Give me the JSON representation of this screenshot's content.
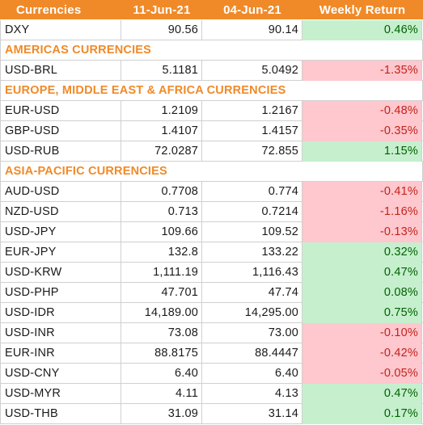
{
  "header": {
    "col1": "Currencies",
    "col2": "11-Jun-21",
    "col3": "04-Jun-21",
    "col4": "Weekly Return"
  },
  "rows": [
    {
      "type": "data",
      "name": "DXY",
      "v1": "90.56",
      "v2": "90.14",
      "ret": "0.46%",
      "sign": "pos"
    },
    {
      "type": "section",
      "label": "AMERICAS CURRENCIES"
    },
    {
      "type": "data",
      "name": "USD-BRL",
      "v1": "5.1181",
      "v2": "5.0492",
      "ret": "-1.35%",
      "sign": "neg"
    },
    {
      "type": "section",
      "label": "EUROPE, MIDDLE EAST & AFRICA CURRENCIES"
    },
    {
      "type": "data",
      "name": "EUR-USD",
      "v1": "1.2109",
      "v2": "1.2167",
      "ret": "-0.48%",
      "sign": "neg"
    },
    {
      "type": "data",
      "name": "GBP-USD",
      "v1": "1.4107",
      "v2": "1.4157",
      "ret": "-0.35%",
      "sign": "neg"
    },
    {
      "type": "data",
      "name": "USD-RUB",
      "v1": "72.0287",
      "v2": "72.855",
      "ret": "1.15%",
      "sign": "pos"
    },
    {
      "type": "section",
      "label": "ASIA-PACIFIC CURRENCIES"
    },
    {
      "type": "data",
      "name": "AUD-USD",
      "v1": "0.7708",
      "v2": "0.774",
      "ret": "-0.41%",
      "sign": "neg"
    },
    {
      "type": "data",
      "name": "NZD-USD",
      "v1": "0.713",
      "v2": "0.7214",
      "ret": "-1.16%",
      "sign": "neg"
    },
    {
      "type": "data",
      "name": "USD-JPY",
      "v1": "109.66",
      "v2": "109.52",
      "ret": "-0.13%",
      "sign": "neg"
    },
    {
      "type": "data",
      "name": "EUR-JPY",
      "v1": "132.8",
      "v2": "133.22",
      "ret": "0.32%",
      "sign": "pos"
    },
    {
      "type": "data",
      "name": "USD-KRW",
      "v1": "1,111.19",
      "v2": "1,116.43",
      "ret": "0.47%",
      "sign": "pos"
    },
    {
      "type": "data",
      "name": "USD-PHP",
      "v1": "47.701",
      "v2": "47.74",
      "ret": "0.08%",
      "sign": "pos"
    },
    {
      "type": "data",
      "name": "USD-IDR",
      "v1": "14,189.00",
      "v2": "14,295.00",
      "ret": "0.75%",
      "sign": "pos"
    },
    {
      "type": "data",
      "name": "USD-INR",
      "v1": "73.08",
      "v2": "73.00",
      "ret": "-0.10%",
      "sign": "neg"
    },
    {
      "type": "data",
      "name": "EUR-INR",
      "v1": "88.8175",
      "v2": "88.4447",
      "ret": "-0.42%",
      "sign": "neg"
    },
    {
      "type": "data",
      "name": "USD-CNY",
      "v1": "6.40",
      "v2": "6.40",
      "ret": "-0.05%",
      "sign": "neg"
    },
    {
      "type": "data",
      "name": "USD-MYR",
      "v1": "4.11",
      "v2": "4.13",
      "ret": "0.47%",
      "sign": "pos"
    },
    {
      "type": "data",
      "name": "USD-THB",
      "v1": "31.09",
      "v2": "31.14",
      "ret": "0.17%",
      "sign": "pos"
    }
  ],
  "colors": {
    "header_bg": "#f08a28",
    "section_text": "#f08a28",
    "positive_bg": "#c6efce",
    "positive_text": "#006100",
    "negative_bg": "#ffc7ce",
    "negative_text": "#c0241c"
  }
}
